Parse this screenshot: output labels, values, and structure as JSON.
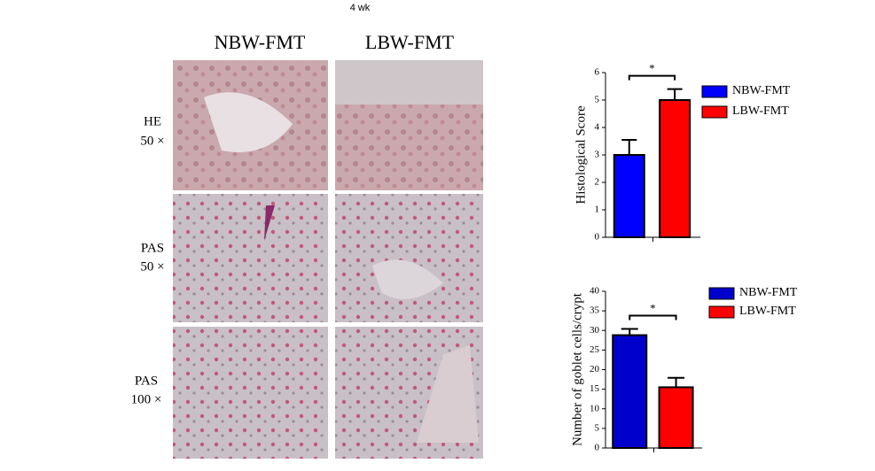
{
  "title": "4 wk",
  "columns": [
    "NBW-FMT",
    "LBW-FMT"
  ],
  "rows": [
    [
      "HE",
      "50 ×"
    ],
    [
      "PAS",
      "50 ×"
    ],
    [
      "PAS",
      "100 ×"
    ]
  ],
  "chart_data": [
    {
      "type": "bar",
      "y_label": "Histological Score",
      "categories": [
        null
      ],
      "annotation": "*",
      "ylim": [
        0,
        6
      ],
      "yticks": [
        0,
        1,
        2,
        3,
        4,
        5,
        6
      ],
      "series": [
        {
          "name": "NBW-FMT",
          "color": "#0000ff",
          "values": [
            3
          ],
          "errors": [
            0.55
          ]
        },
        {
          "name": "LBW-FMT",
          "color": "#ff0000",
          "values": [
            5
          ],
          "errors": [
            0.4
          ]
        }
      ]
    },
    {
      "type": "bar",
      "y_label": "Number of goblet cells/crypt",
      "categories": [
        null
      ],
      "annotation": "*",
      "ylim": [
        0,
        40
      ],
      "yticks": [
        0,
        5,
        10,
        15,
        20,
        25,
        30,
        35,
        40
      ],
      "series": [
        {
          "name": "NBW-FMT",
          "color": "#0000cc",
          "values": [
            28.8
          ],
          "errors": [
            1.6
          ]
        },
        {
          "name": "LBW-FMT",
          "color": "#ff0000",
          "values": [
            15.5
          ],
          "errors": [
            2.4
          ]
        }
      ]
    }
  ]
}
